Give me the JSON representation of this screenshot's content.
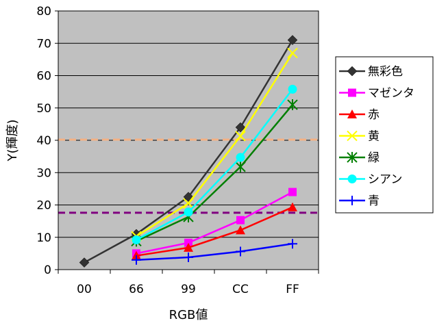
{
  "chart_data": {
    "type": "line",
    "categories": [
      "00",
      "66",
      "99",
      "CC",
      "FF"
    ],
    "xlabel": "RGB値",
    "ylabel": "Y(輝度)",
    "ylim": [
      0,
      80
    ],
    "yticks": [
      0,
      10,
      20,
      30,
      40,
      50,
      60,
      70,
      80
    ],
    "grid": "horizontal",
    "plot_background": "#c0c0c0",
    "legend_position": "right",
    "reference_lines": [
      {
        "y": 40.2,
        "color": "#f4b183",
        "style": "dashed"
      },
      {
        "y": 17.6,
        "color": "#7f007f",
        "style": "dashed"
      }
    ],
    "series": [
      {
        "name": "無彩色",
        "color": "#333333",
        "marker": "diamond",
        "values": [
          2.2,
          11.0,
          22.5,
          44.0,
          71.0
        ]
      },
      {
        "name": "マゼンタ",
        "color": "#ff00ff",
        "marker": "square",
        "values": [
          null,
          5.0,
          8.3,
          15.3,
          24.0
        ]
      },
      {
        "name": "赤",
        "color": "#ff0000",
        "marker": "triangle",
        "values": [
          null,
          4.3,
          6.8,
          12.2,
          19.3
        ]
      },
      {
        "name": "黄",
        "color": "#ffff00",
        "marker": "x",
        "values": [
          null,
          10.3,
          20.5,
          41.3,
          67.0
        ]
      },
      {
        "name": "緑",
        "color": "#007f00",
        "marker": "asterisk",
        "values": [
          null,
          8.8,
          16.3,
          31.8,
          51.0
        ]
      },
      {
        "name": "シアン",
        "color": "#00ffff",
        "marker": "circle",
        "values": [
          null,
          9.2,
          17.8,
          34.7,
          55.8
        ]
      },
      {
        "name": "青",
        "color": "#0000ff",
        "marker": "plus",
        "values": [
          null,
          3.0,
          3.8,
          5.6,
          8.0
        ]
      }
    ]
  }
}
